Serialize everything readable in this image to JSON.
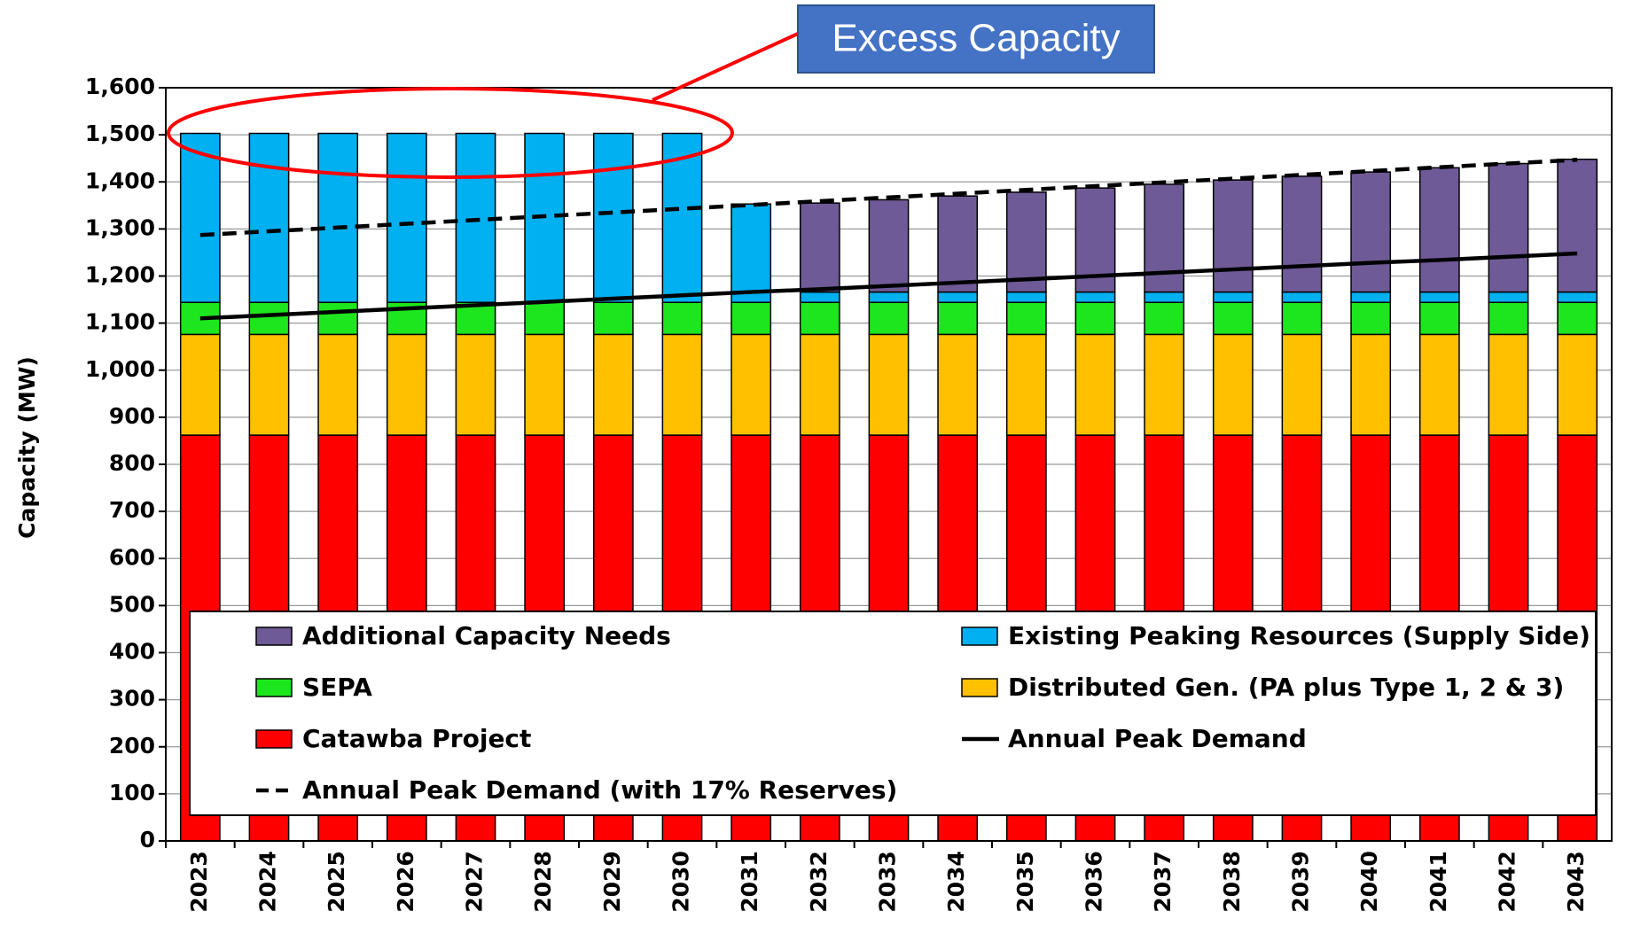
{
  "chart_data": {
    "type": "bar",
    "stacked": true,
    "y_label": "Capacity (MW)",
    "annotation": "Excess Capacity",
    "categories": [
      "2023",
      "2024",
      "2025",
      "2026",
      "2027",
      "2028",
      "2029",
      "2030",
      "2031",
      "2032",
      "2033",
      "2034",
      "2035",
      "2036",
      "2037",
      "2038",
      "2039",
      "2040",
      "2041",
      "2042",
      "2043"
    ],
    "ylim": [
      0,
      1600
    ],
    "yticks": [
      0,
      100,
      200,
      300,
      400,
      500,
      600,
      700,
      800,
      900,
      {
        "value": 1000,
        "label": "1,000"
      },
      {
        "value": 1100,
        "label": "1,100"
      },
      {
        "value": 1200,
        "label": "1,200"
      },
      {
        "value": 1300,
        "label": "1,300"
      },
      {
        "value": 1400,
        "label": "1,400"
      },
      {
        "value": 1500,
        "label": "1,500"
      },
      {
        "value": 1600,
        "label": "1,600"
      }
    ],
    "grid": true,
    "series": [
      {
        "name": "Additional Capacity Needs",
        "type": "bar",
        "color": "#6e5a96",
        "values": [
          null,
          null,
          null,
          null,
          null,
          null,
          null,
          null,
          null,
          189,
          196,
          204,
          212,
          221,
          229,
          238,
          246,
          255,
          264,
          273,
          282
        ]
      },
      {
        "name": "Existing Peaking Resources (Supply Side)",
        "type": "bar",
        "color": "#00b0f0",
        "values": [
          359,
          359,
          359,
          359,
          359,
          359,
          359,
          359,
          209,
          22,
          22,
          22,
          22,
          22,
          22,
          22,
          22,
          22,
          22,
          22,
          22
        ]
      },
      {
        "name": "SEPA",
        "type": "bar",
        "color": "#1ee61e",
        "values": [
          68,
          68,
          68,
          68,
          68,
          68,
          68,
          68,
          68,
          68,
          68,
          68,
          68,
          68,
          68,
          68,
          68,
          68,
          68,
          68,
          68
        ]
      },
      {
        "name": "Distributed Gen. (PA plus Type 1, 2 & 3)",
        "type": "bar",
        "color": "#ffc000",
        "values": [
          214,
          214,
          214,
          214,
          214,
          214,
          214,
          214,
          214,
          214,
          214,
          214,
          214,
          214,
          214,
          214,
          214,
          214,
          214,
          214,
          214
        ]
      },
      {
        "name": "Catawba Project",
        "type": "bar",
        "color": "#ff0000",
        "values": [
          862,
          862,
          862,
          862,
          862,
          862,
          862,
          862,
          862,
          862,
          862,
          862,
          862,
          862,
          862,
          862,
          862,
          862,
          862,
          862,
          862
        ]
      },
      {
        "name": "Annual Peak Demand",
        "type": "line",
        "color": "#000000",
        "dashed": false,
        "values": [
          1110,
          1117,
          1124,
          1131,
          1138,
          1145,
          1152,
          1159,
          1166,
          1172,
          1179,
          1186,
          1193,
          1200,
          1207,
          1214,
          1221,
          1228,
          1234,
          1241,
          1248
        ]
      },
      {
        "name": "Annual Peak Demand (with 17% Reserves)",
        "type": "line",
        "color": "#000000",
        "dashed": true,
        "values": [
          1287,
          1295,
          1303,
          1311,
          1319,
          1327,
          1335,
          1343,
          1351,
          1359,
          1367,
          1375,
          1383,
          1391,
          1399,
          1407,
          1415,
          1423,
          1431,
          1439,
          1447
        ]
      }
    ]
  }
}
